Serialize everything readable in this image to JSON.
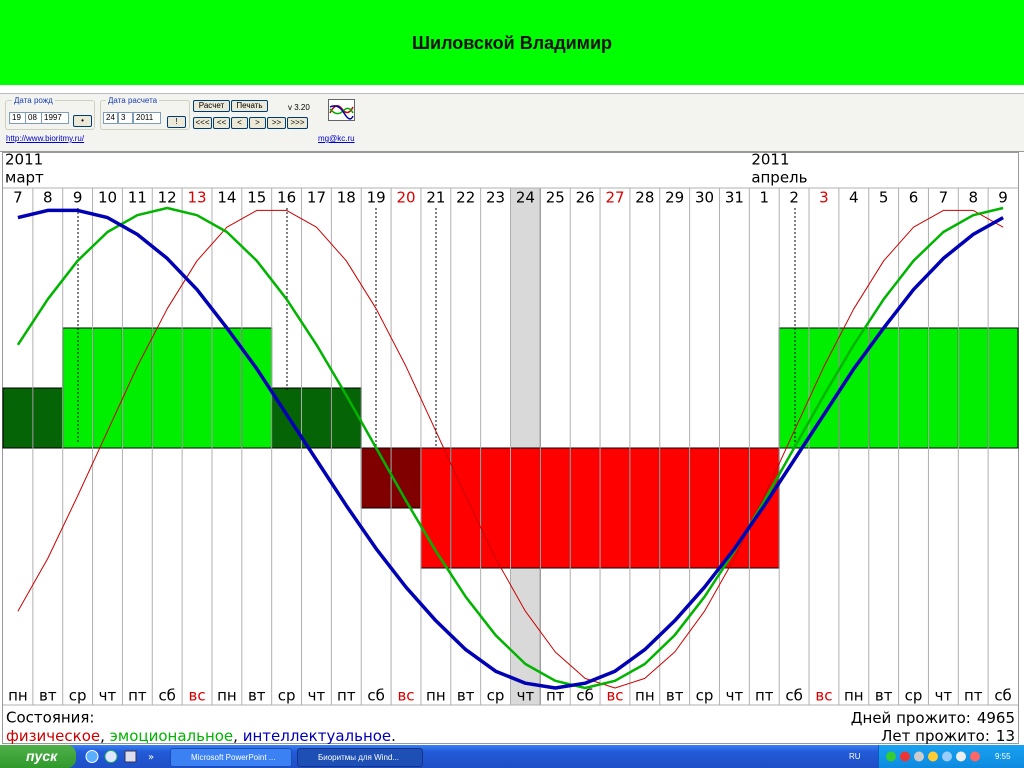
{
  "header": {
    "title": "Шиловской Владимир"
  },
  "controls": {
    "birth_label": "Дата рожд",
    "birth_day": "19",
    "birth_month": "08",
    "birth_year": "1997",
    "birth_button": "•",
    "calc_label": "Дата расчета",
    "calc_day": "24",
    "calc_month": "3",
    "calc_year": "2011",
    "calc_button": "!",
    "buttons": [
      "Расчет",
      "Печать"
    ],
    "version": "v 3.20",
    "nav": [
      "<<<",
      "<<",
      "<",
      ">",
      ">>",
      ">>>"
    ],
    "site_link": "http://www.bioritmy.ru/",
    "email_link": "mg@kc.ru"
  },
  "chart_data": {
    "type": "biorhythm",
    "months": [
      {
        "year": "2011",
        "month": "март"
      },
      {
        "year": "2011",
        "month": "апрель"
      }
    ],
    "categories": [
      "7",
      "8",
      "9",
      "10",
      "11",
      "12",
      "13",
      "14",
      "15",
      "16",
      "17",
      "18",
      "19",
      "20",
      "21",
      "22",
      "23",
      "24",
      "25",
      "26",
      "27",
      "28",
      "29",
      "30",
      "31",
      "1",
      "2",
      "3",
      "4",
      "5",
      "6",
      "7",
      "8",
      "9"
    ],
    "weekdays": [
      "пн",
      "вт",
      "ср",
      "чт",
      "пт",
      "сб",
      "вс",
      "пн",
      "вт",
      "ср",
      "чт",
      "пт",
      "сб",
      "вс",
      "пн",
      "вт",
      "ср",
      "чт",
      "пт",
      "сб",
      "вс",
      "пн",
      "вт",
      "ср",
      "чт",
      "пт",
      "сб",
      "вс",
      "пн",
      "вт",
      "ср",
      "чт",
      "пт",
      "сб"
    ],
    "ylim": [
      -1,
      1
    ],
    "series": [
      {
        "name": "физическое",
        "color": "#cc0000",
        "values": [
          -0.68,
          -0.46,
          -0.2,
          0.07,
          0.34,
          0.58,
          0.78,
          0.92,
          0.99,
          0.99,
          0.92,
          0.78,
          0.58,
          0.34,
          0.07,
          -0.2,
          -0.46,
          -0.68,
          -0.85,
          -0.96,
          -1,
          -0.96,
          -0.85,
          -0.68,
          -0.46,
          -0.2,
          0.07,
          0.34,
          0.58,
          0.78,
          0.92,
          0.99,
          0.99,
          0.92
        ]
      },
      {
        "name": "эмоциональное",
        "color": "#00b400",
        "values": [
          0.43,
          0.62,
          0.78,
          0.9,
          0.97,
          1,
          0.97,
          0.9,
          0.78,
          0.62,
          0.43,
          0.22,
          0,
          -0.22,
          -0.43,
          -0.62,
          -0.78,
          -0.9,
          -0.97,
          -1,
          -0.97,
          -0.9,
          -0.78,
          -0.62,
          -0.43,
          -0.22,
          0,
          0.22,
          0.43,
          0.62,
          0.78,
          0.9,
          0.97,
          1
        ]
      },
      {
        "name": "интеллектуальное",
        "color": "#0000b4",
        "values": [
          0.96,
          0.99,
          0.99,
          0.96,
          0.89,
          0.79,
          0.66,
          0.5,
          0.33,
          0.14,
          -0.05,
          -0.24,
          -0.42,
          -0.58,
          -0.72,
          -0.84,
          -0.93,
          -0.98,
          -1,
          -0.98,
          -0.93,
          -0.84,
          -0.72,
          -0.58,
          -0.42,
          -0.24,
          -0.05,
          0.14,
          0.33,
          0.5,
          0.66,
          0.79,
          0.89,
          0.96
        ]
      }
    ],
    "states": {
      "values": [
        1,
        1,
        2,
        2,
        2,
        2,
        2,
        2,
        2,
        1,
        1,
        1,
        -1,
        -1,
        -2,
        -2,
        -2,
        -2,
        -2,
        -2,
        -2,
        -2,
        -2,
        -2,
        -2,
        -2,
        2,
        2,
        2,
        2,
        2,
        2,
        2,
        2
      ],
      "ylim": [
        -4,
        4
      ],
      "colors": {
        "2": "#00ee00",
        "1": "#056405",
        "-1": "#800000",
        "-2": "#ff0000"
      }
    },
    "holiday_color": "#dd0000",
    "legend_label": "Состояния:",
    "legend_separator": ", ",
    "legend_end": ".",
    "days_label": "Дней прожито:",
    "days_lived": 4965,
    "years_label": "Лет прожито:",
    "years_lived": 13
  },
  "taskbar": {
    "start": "пуск",
    "tasks": [
      "Microsoft PowerPoint ...",
      "Биоритмы для Wind..."
    ],
    "lang": "RU",
    "clock": "9:55"
  }
}
